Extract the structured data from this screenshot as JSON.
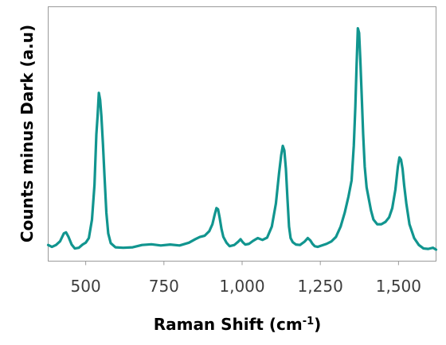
{
  "chart_data": {
    "type": "line",
    "title": "",
    "xlabel": "Raman Shift (cm",
    "xlabel_superscript": "-1",
    "xlabel_suffix": ")",
    "ylabel": "Counts minus Dark (a.u)",
    "xlim": [
      380,
      1620
    ],
    "ylim": [
      0,
      100
    ],
    "xticks": [
      500,
      750,
      1000,
      1250,
      1500
    ],
    "xtick_labels": [
      "500",
      "750",
      "1,000",
      "1,250",
      "1,500"
    ],
    "yticks_shown": false,
    "grid": false,
    "legend": "none",
    "color": "#11958f",
    "series": [
      {
        "x": [
          380,
          392,
          405,
          418,
          430,
          437,
          445,
          455,
          465,
          478,
          490,
          500,
          510,
          520,
          528,
          534,
          538,
          542,
          546,
          550,
          555,
          560,
          566,
          572,
          580,
          595,
          620,
          650,
          680,
          710,
          740,
          770,
          800,
          830,
          850,
          865,
          880,
          895,
          905,
          912,
          918,
          923,
          928,
          934,
          940,
          950,
          960,
          975,
          988,
          995,
          1002,
          1010,
          1022,
          1035,
          1050,
          1065,
          1080,
          1095,
          1108,
          1118,
          1125,
          1130,
          1135,
          1140,
          1145,
          1150,
          1155,
          1162,
          1172,
          1185,
          1200,
          1210,
          1218,
          1225,
          1232,
          1242,
          1255,
          1270,
          1285,
          1300,
          1315,
          1328,
          1340,
          1350,
          1357,
          1362,
          1366,
          1370,
          1374,
          1378,
          1382,
          1387,
          1392,
          1398,
          1405,
          1412,
          1420,
          1432,
          1445,
          1458,
          1470,
          1480,
          1490,
          1498,
          1503,
          1508,
          1513,
          1518,
          1525,
          1535,
          1550,
          1565,
          1580,
          1595,
          1610,
          1620
        ],
        "y": [
          2,
          1.2,
          2,
          3.6,
          7,
          7.5,
          5.5,
          2.2,
          0.5,
          0.8,
          2.2,
          3,
          5,
          13,
          28,
          50,
          58,
          68,
          65,
          58,
          46,
          32,
          16,
          7,
          2.8,
          1,
          0.8,
          1,
          2,
          2.3,
          1.8,
          2.2,
          1.8,
          3,
          4.5,
          5.5,
          6,
          8,
          11,
          15,
          18,
          17.5,
          14,
          9,
          5.5,
          3,
          1.5,
          2,
          3.5,
          4.5,
          3.2,
          2.2,
          2.5,
          3.8,
          5,
          4.2,
          5.2,
          10,
          20,
          33,
          41,
          45,
          43,
          35,
          22,
          10,
          5,
          3.2,
          2.2,
          2,
          3.5,
          5,
          4,
          2.5,
          1.5,
          1.2,
          1.8,
          2.5,
          3.5,
          5.5,
          10,
          16,
          23,
          30,
          45,
          62,
          80,
          96,
          94,
          82,
          68,
          50,
          36,
          27,
          22,
          17,
          13,
          11,
          11,
          12,
          14,
          18,
          26,
          36,
          40,
          39,
          35,
          28,
          20,
          11,
          5,
          2,
          0.5,
          0.3,
          0.8,
          0
        ]
      }
    ]
  }
}
